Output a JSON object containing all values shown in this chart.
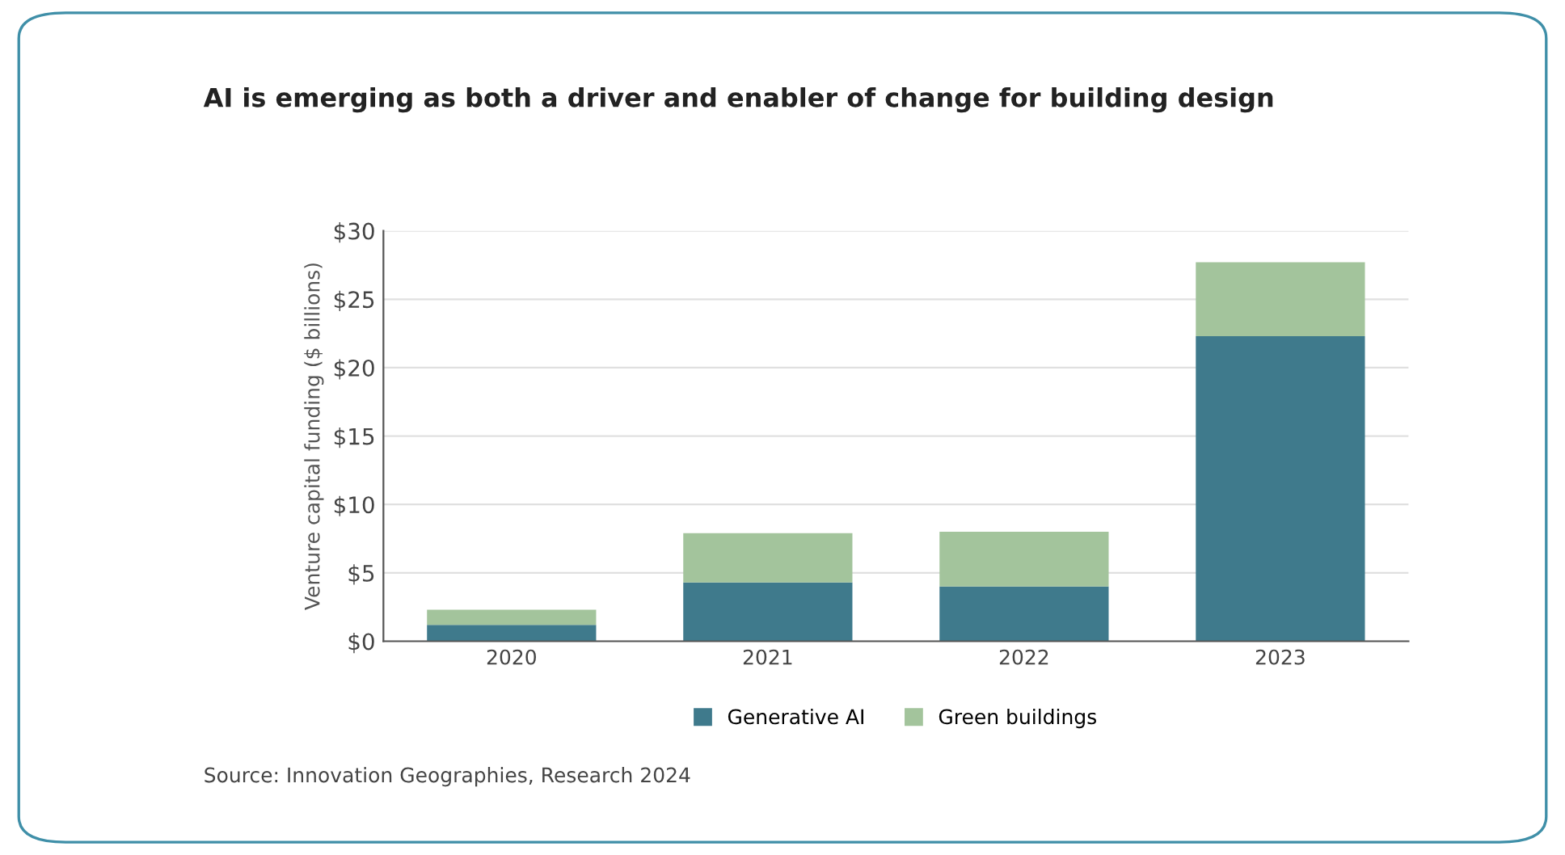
{
  "chart_data": {
    "type": "bar",
    "title": "AI is emerging as both a driver and enabler of change for building design",
    "categories": [
      "2020",
      "2021",
      "2022",
      "2023"
    ],
    "series": [
      {
        "name": "Generative AI",
        "color": "#3f7a8c",
        "values": [
          1.2,
          4.3,
          4.0,
          22.3
        ]
      },
      {
        "name": "Green buildings",
        "color": "#a3c49c",
        "values": [
          1.1,
          3.6,
          4.0,
          5.4
        ]
      }
    ],
    "stacked": true,
    "ylabel": "Venture capital funding ($ billions)",
    "ylim": [
      0,
      30
    ],
    "yticks": [
      {
        "value": 0,
        "label": "$0"
      },
      {
        "value": 5,
        "label": "$5"
      },
      {
        "value": 10,
        "label": "$10"
      },
      {
        "value": 15,
        "label": "$15"
      },
      {
        "value": 20,
        "label": "$20"
      },
      {
        "value": 25,
        "label": "$25"
      },
      {
        "value": 30,
        "label": "$30"
      }
    ],
    "grid": "y",
    "legend": "bottom",
    "annotations": [
      "Source: Innovation Geographies, Research 2024"
    ]
  }
}
